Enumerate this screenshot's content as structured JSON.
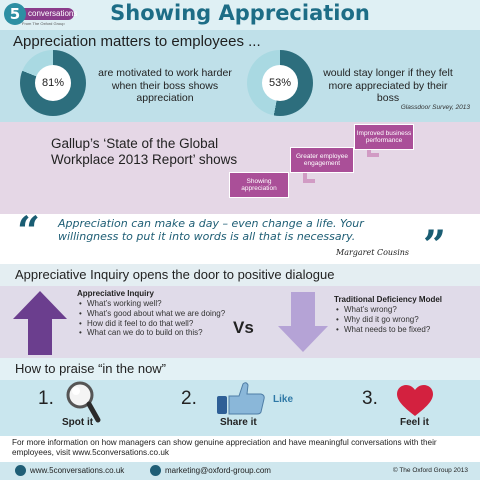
{
  "header": {
    "logo_number": "5",
    "logo_name": "conversations",
    "logo_tagline": "From The Oxford Group",
    "title": "Showing Appreciation"
  },
  "employees": {
    "heading": "Appreciation matters to employees ...",
    "stats": [
      {
        "value": "81%",
        "percent": 81,
        "text": "are motivated to work harder when their boss shows appreciation"
      },
      {
        "value": "53%",
        "percent": 53,
        "text": "would stay longer if they felt more appreciated by their boss"
      }
    ],
    "source": "Glassdoor Survey, 2013"
  },
  "gallup": {
    "text": "Gallup’s ‘State of the Global Workplace 2013 Report’ shows",
    "steps": [
      "Showing appreciation",
      "Greater employee engagement",
      "Improved business performance"
    ]
  },
  "quote": {
    "text": "Appreciation can make a day – even change a life.  Your willingness to put it into words is all that is necessary.",
    "author": "Margaret Cousins",
    "open_mark": "“",
    "close_mark": "”"
  },
  "inquiry": {
    "heading": "Appreciative Inquiry opens the door to positive dialogue",
    "left_title": "Appreciative Inquiry",
    "left_items": [
      "What’s working well?",
      "What’s good about what we are doing?",
      "How did it feel to do that well?",
      "What can we do to build on this?"
    ],
    "vs": "Vs",
    "right_title": "Traditional Deficiency Model",
    "right_items": [
      "What’s wrong?",
      "Why did it go wrong?",
      "What needs to be fixed?"
    ]
  },
  "praise": {
    "heading": "How to praise “in the now”",
    "steps": [
      {
        "number": "1.",
        "label": "Spot it"
      },
      {
        "number": "2.",
        "label": "Share it",
        "extra": "Like"
      },
      {
        "number": "3.",
        "label": "Feel it"
      }
    ]
  },
  "footer": {
    "text": "For more information on how managers can show genuine appreciation and have meaningful conversations with their employees, visit www.5conversations.co.uk",
    "website": "www.5conversations.co.uk",
    "email": "marketing@oxford-group.com",
    "copyright": "© The Oxford Group 2013"
  },
  "colors": {
    "teal": "#2d6e7d",
    "light_teal": "#a9d9e2",
    "purple": "#aa4f98",
    "arrow_purple": "#6b3e8e",
    "arrow_lilac": "#b5a3d6",
    "heart": "#d3213f"
  }
}
